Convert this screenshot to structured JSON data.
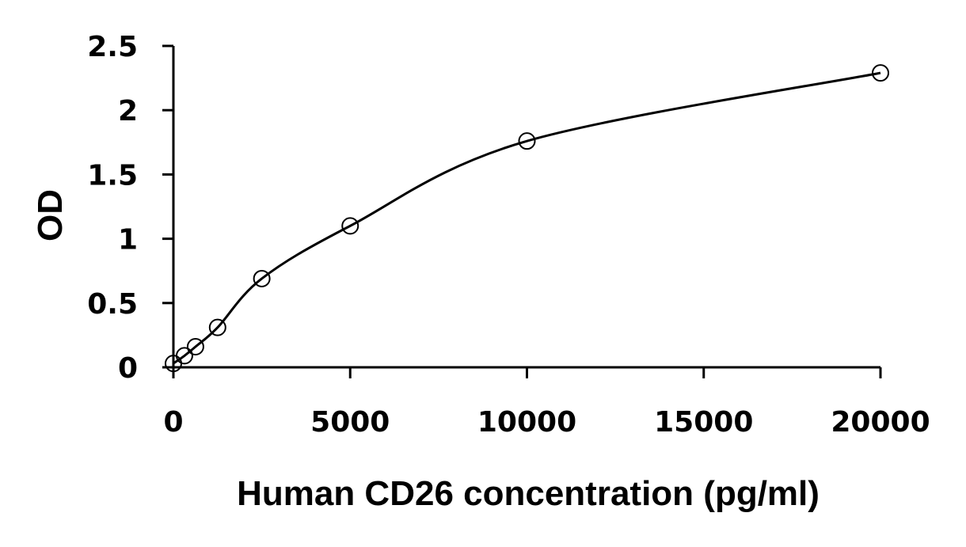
{
  "chart_data": {
    "type": "scatter",
    "title": "",
    "xlabel": "Human CD26 concentration (pg/ml)",
    "ylabel": "OD",
    "xlim": [
      0,
      20000
    ],
    "ylim": [
      0,
      2.5
    ],
    "xticks": [
      0,
      5000,
      10000,
      15000,
      20000
    ],
    "yticks": [
      0,
      0.5,
      1,
      1.5,
      2,
      2.5
    ],
    "xtick_labels": [
      "0",
      "5000",
      "10000",
      "15000",
      "20000"
    ],
    "ytick_labels": [
      "0",
      "0.5",
      "1",
      "1.5",
      "2",
      "2.5"
    ],
    "grid": false,
    "legend": "none",
    "series": [
      {
        "x": [
          0,
          312.5,
          625,
          1250,
          2500,
          5000,
          10000,
          20000
        ],
        "y": [
          0.03,
          0.09,
          0.16,
          0.31,
          0.69,
          1.1,
          1.76,
          2.29
        ],
        "marker": "open-circle",
        "fit_curve": true
      }
    ]
  }
}
